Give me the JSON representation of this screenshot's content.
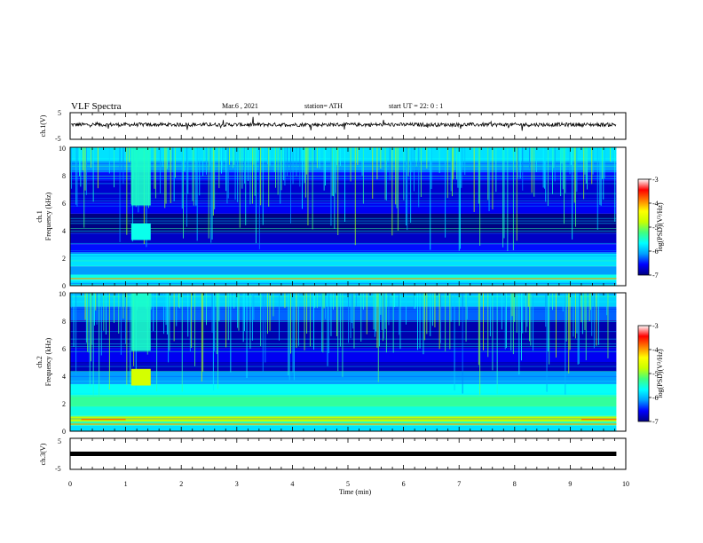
{
  "header": {
    "title": "VLF Spectra",
    "date": "Mar.6 , 2021",
    "station": "station= ATH",
    "start": "start  UT =  22: 0  : 1"
  },
  "panels": {
    "ch1_wave": {
      "label": "ch.1(V)",
      "yticks": [
        "5",
        "-5"
      ]
    },
    "ch1_spec": {
      "label": "ch.1",
      "ylabel": "Frequency (kHz)",
      "yticks": [
        "10",
        "8",
        "6",
        "4",
        "2",
        "0"
      ]
    },
    "ch2_spec": {
      "label": "ch.2",
      "ylabel": "Frequency (kHz)",
      "yticks": [
        "10",
        "8",
        "6",
        "4",
        "2",
        "0"
      ]
    },
    "ch3_wave": {
      "label": "ch.3(V)",
      "yticks": [
        "5",
        "-5"
      ]
    }
  },
  "colorbar": {
    "ticks": [
      "-3",
      "-4",
      "-5",
      "-6",
      "-7"
    ],
    "label": "log(PSD)(V²/Hz)",
    "colors": [
      "#000080",
      "#0000ff",
      "#00a0ff",
      "#00ffff",
      "#40ff80",
      "#c8ff00",
      "#ffff00",
      "#ff8000",
      "#ff0000",
      "#ffffff"
    ]
  },
  "xaxis": {
    "label": "Time (min)",
    "ticks": [
      "0",
      "1",
      "2",
      "3",
      "4",
      "5",
      "6",
      "7",
      "8",
      "9",
      "10"
    ]
  },
  "chart_data": [
    {
      "type": "line",
      "name": "ch.1(V)",
      "ylim": [
        -5,
        5
      ],
      "xlim": [
        0,
        10
      ],
      "baseline_V": 0.5,
      "data_end_min": 9.83
    },
    {
      "type": "heatmap",
      "name": "ch.1",
      "ylabel": "Frequency (kHz)",
      "ylim": [
        0,
        10
      ],
      "xlim": [
        0,
        10
      ],
      "color_range": [
        -7,
        -3
      ],
      "data_end_min": 9.83
    },
    {
      "type": "heatmap",
      "name": "ch.2",
      "ylabel": "Frequency (kHz)",
      "ylim": [
        0,
        10
      ],
      "xlim": [
        0,
        10
      ],
      "color_range": [
        -7,
        -3
      ],
      "data_end_min": 9.83
    },
    {
      "type": "line",
      "name": "ch.3(V)",
      "ylim": [
        -5,
        5
      ],
      "xlim": [
        0,
        10
      ],
      "baseline_V": 0.0,
      "data_end_min": 9.83
    }
  ]
}
